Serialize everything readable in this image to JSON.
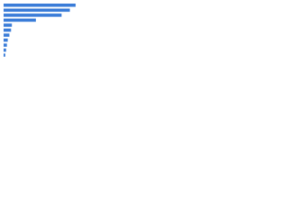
{
  "chart_data": {
    "type": "bar",
    "orientation": "horizontal",
    "categories": [
      null,
      null,
      null,
      null,
      null,
      null,
      null,
      null,
      null,
      null,
      null
    ],
    "values": [
      87,
      80,
      70,
      39,
      10,
      9,
      7,
      5,
      4,
      3,
      2
    ],
    "color": "#3a7cd8",
    "xlim": [
      0,
      100
    ]
  }
}
